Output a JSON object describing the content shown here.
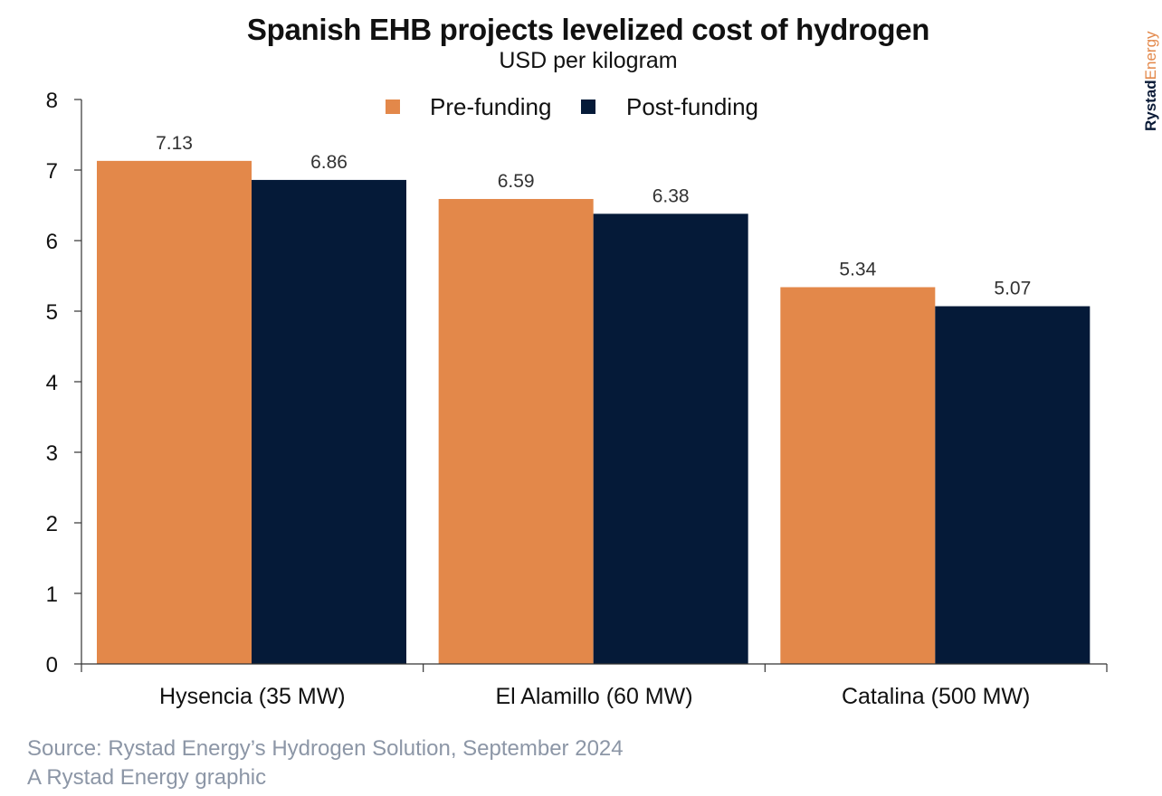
{
  "brand": {
    "part1": "Rystad",
    "part2": "Energy"
  },
  "footer": {
    "source": "Source: Rystad Energy’s Hydrogen Solution, September 2024",
    "credit": "A Rystad Energy graphic"
  },
  "colors": {
    "pre": "#e3884a",
    "post": "#051a38"
  },
  "chart_data": {
    "type": "bar",
    "title": "Spanish EHB projects levelized cost of hydrogen",
    "subtitle": "USD per kilogram",
    "categories": [
      "Hysencia (35 MW)",
      "El Alamillo (60 MW)",
      "Catalina (500 MW)"
    ],
    "series": [
      {
        "name": "Pre-funding",
        "values": [
          7.13,
          6.59,
          5.34
        ],
        "labels": [
          "7.13",
          "6.59",
          "5.34"
        ]
      },
      {
        "name": "Post-funding",
        "values": [
          6.86,
          6.38,
          5.07
        ],
        "labels": [
          "6.86",
          "6.38",
          "5.07"
        ]
      }
    ],
    "ylim": [
      0,
      8
    ],
    "yticks": [
      "0",
      "1",
      "2",
      "3",
      "4",
      "5",
      "6",
      "7",
      "8"
    ],
    "grid": false,
    "legend_position": "top-center"
  }
}
